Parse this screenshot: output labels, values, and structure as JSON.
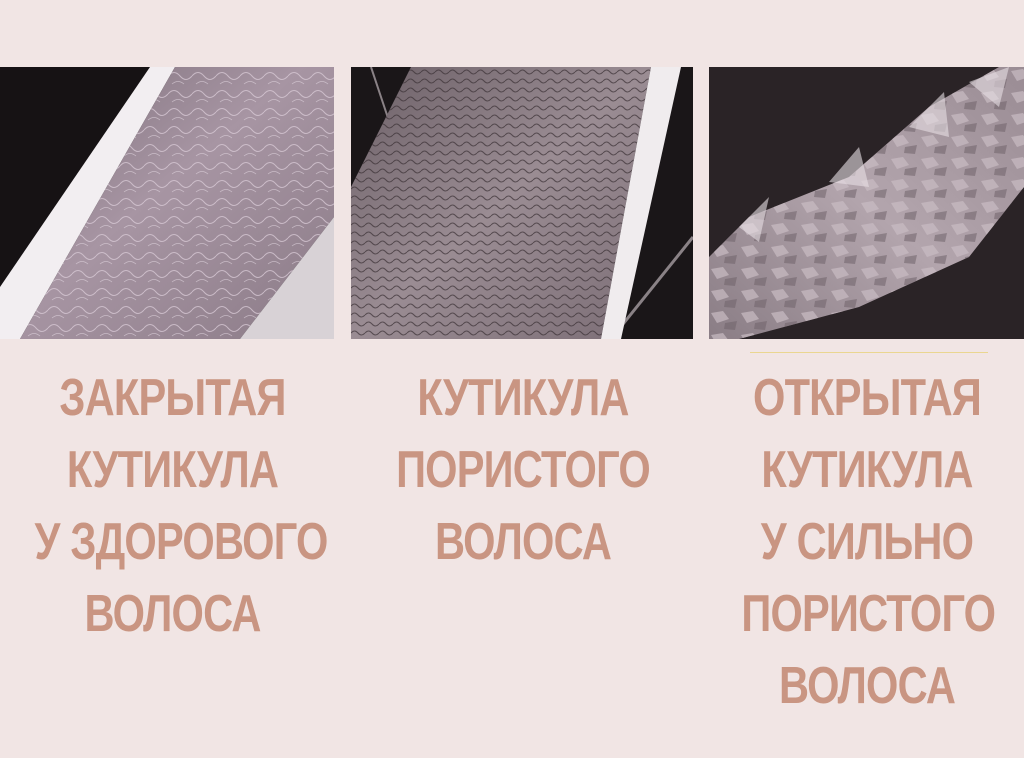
{
  "panels": [
    {
      "id": "healthy",
      "caption_lines": [
        "ЗАКРЫТАЯ",
        "КУТИКУЛА",
        "У ЗДОРОВОГО",
        "ВОЛОСА"
      ]
    },
    {
      "id": "porous",
      "caption_lines": [
        "КУТИКУЛА",
        "ПОРИСТОГО",
        "ВОЛОСА"
      ]
    },
    {
      "id": "very-porous",
      "caption_lines": [
        "ОТКРЫТАЯ",
        "КУТИКУЛА",
        "У СИЛЬНО",
        "ПОРИСТОГО",
        "ВОЛОСА"
      ]
    }
  ],
  "colors": {
    "background": "#f1e5e4",
    "caption": "#c99582",
    "divider": "#e9d27a"
  }
}
